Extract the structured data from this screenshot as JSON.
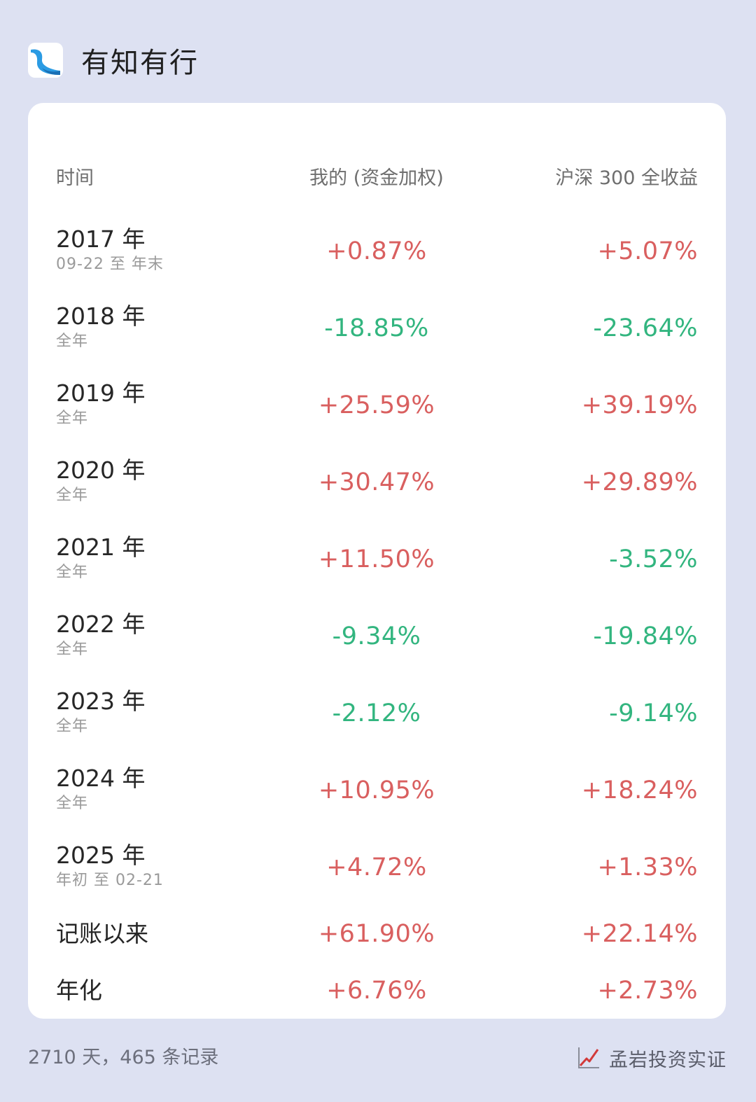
{
  "app": {
    "title": "有知有行",
    "logo_icon": "app-logo-icon"
  },
  "table": {
    "headers": {
      "time": "时间",
      "mine": "我的 (资金加权)",
      "index": "沪深 300 全收益"
    },
    "rows": [
      {
        "year": "2017 年",
        "sub": "09-22 至 年末",
        "mine": "+0.87%",
        "index": "+5.07%"
      },
      {
        "year": "2018 年",
        "sub": "全年",
        "mine": "-18.85%",
        "index": "-23.64%"
      },
      {
        "year": "2019 年",
        "sub": "全年",
        "mine": "+25.59%",
        "index": "+39.19%"
      },
      {
        "year": "2020 年",
        "sub": "全年",
        "mine": "+30.47%",
        "index": "+29.89%"
      },
      {
        "year": "2021 年",
        "sub": "全年",
        "mine": "+11.50%",
        "index": "-3.52%"
      },
      {
        "year": "2022 年",
        "sub": "全年",
        "mine": "-9.34%",
        "index": "-19.84%"
      },
      {
        "year": "2023 年",
        "sub": "全年",
        "mine": "-2.12%",
        "index": "-9.14%"
      },
      {
        "year": "2024 年",
        "sub": "全年",
        "mine": "+10.95%",
        "index": "+18.24%"
      },
      {
        "year": "2025 年",
        "sub": "年初 至 02-21",
        "mine": "+4.72%",
        "index": "+1.33%"
      }
    ],
    "summary": [
      {
        "label": "记账以来",
        "mine": "+61.90%",
        "index": "+22.14%"
      },
      {
        "label": "年化",
        "mine": "+6.76%",
        "index": "+2.73%"
      }
    ]
  },
  "footer": {
    "stats": "2710 天，465 条记录",
    "brand": "孟岩投资实证",
    "brand_icon": "trend-chart-icon"
  },
  "colors": {
    "background": "#dde1f2",
    "card": "#ffffff",
    "positive": "#d95f5f",
    "negative": "#32b57f",
    "logo_blue": "#2b9be3"
  }
}
